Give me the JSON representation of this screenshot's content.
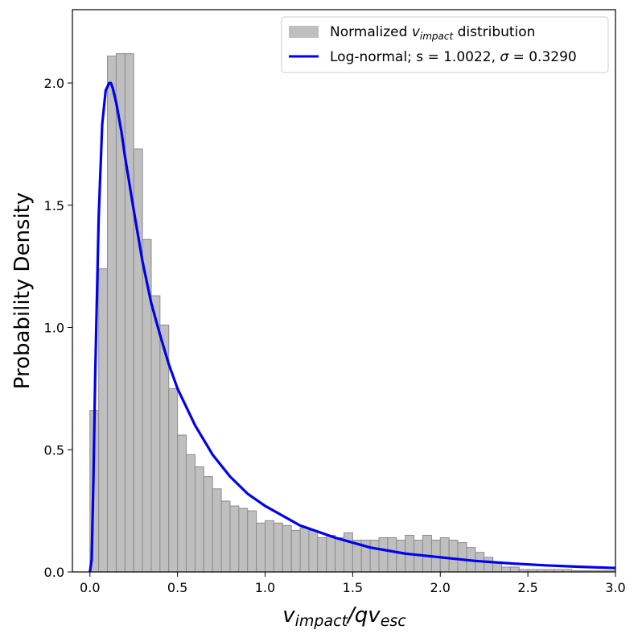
{
  "chart_data": {
    "type": "histogram+line",
    "xlabel": {
      "main": "v",
      "sub1": "impact",
      "mid": "/qv",
      "sub2": "esc"
    },
    "ylabel": "Probability Density",
    "xlim": [
      -0.1,
      3.0
    ],
    "ylim": [
      0.0,
      2.3
    ],
    "x_ticks": [
      0.0,
      0.5,
      1.0,
      1.5,
      2.0,
      2.5,
      3.0
    ],
    "x_tick_labels": [
      "0.0",
      "0.5",
      "1.0",
      "1.5",
      "2.0",
      "2.5",
      "3.0"
    ],
    "y_ticks": [
      0.0,
      0.5,
      1.0,
      1.5,
      2.0
    ],
    "y_tick_labels": [
      "0.0",
      "0.5",
      "1.0",
      "1.5",
      "2.0"
    ],
    "legend_position": "top-right",
    "legend": {
      "hist": {
        "prefix": "Normalized ",
        "var": "v",
        "sub": "impact",
        "suffix": " distribution"
      },
      "curve": {
        "prefix": "Log-normal; s = 1.0022, ",
        "sigma": "σ",
        "suffix": " = 0.3290"
      }
    },
    "colors": {
      "hist_fill": "#bfbfbf",
      "hist_edge": "#8c8c8c",
      "curve": "#0000ee"
    },
    "histogram": {
      "bin_width": 0.05,
      "bin_start": 0.0,
      "values": [
        0.66,
        1.24,
        2.11,
        2.12,
        2.12,
        1.73,
        1.36,
        1.13,
        1.01,
        0.75,
        0.56,
        0.48,
        0.43,
        0.39,
        0.34,
        0.29,
        0.27,
        0.26,
        0.25,
        0.2,
        0.21,
        0.2,
        0.19,
        0.17,
        0.18,
        0.17,
        0.14,
        0.15,
        0.14,
        0.16,
        0.13,
        0.13,
        0.13,
        0.14,
        0.14,
        0.13,
        0.15,
        0.13,
        0.15,
        0.13,
        0.14,
        0.13,
        0.12,
        0.1,
        0.08,
        0.06,
        0.04,
        0.02,
        0.02,
        0.01,
        0.01,
        0.01,
        0.01,
        0.01,
        0.01,
        0.005,
        0.005,
        0.005,
        0.005,
        0.005
      ]
    },
    "curve": {
      "name": "Log-normal; s = 1.0022, σ = 0.3290",
      "x": [
        0.0,
        0.01,
        0.02,
        0.03,
        0.05,
        0.07,
        0.09,
        0.11,
        0.12,
        0.13,
        0.15,
        0.18,
        0.2,
        0.25,
        0.3,
        0.35,
        0.4,
        0.45,
        0.5,
        0.6,
        0.7,
        0.8,
        0.9,
        1.0,
        1.2,
        1.4,
        1.6,
        1.8,
        2.0,
        2.2,
        2.4,
        2.6,
        2.8,
        3.0
      ],
      "y": [
        0.0,
        0.05,
        0.38,
        0.8,
        1.45,
        1.83,
        1.97,
        2.0,
        2.0,
        1.98,
        1.92,
        1.8,
        1.7,
        1.48,
        1.27,
        1.1,
        0.97,
        0.85,
        0.75,
        0.6,
        0.48,
        0.39,
        0.32,
        0.27,
        0.19,
        0.14,
        0.1,
        0.075,
        0.06,
        0.045,
        0.035,
        0.027,
        0.021,
        0.016
      ]
    }
  }
}
